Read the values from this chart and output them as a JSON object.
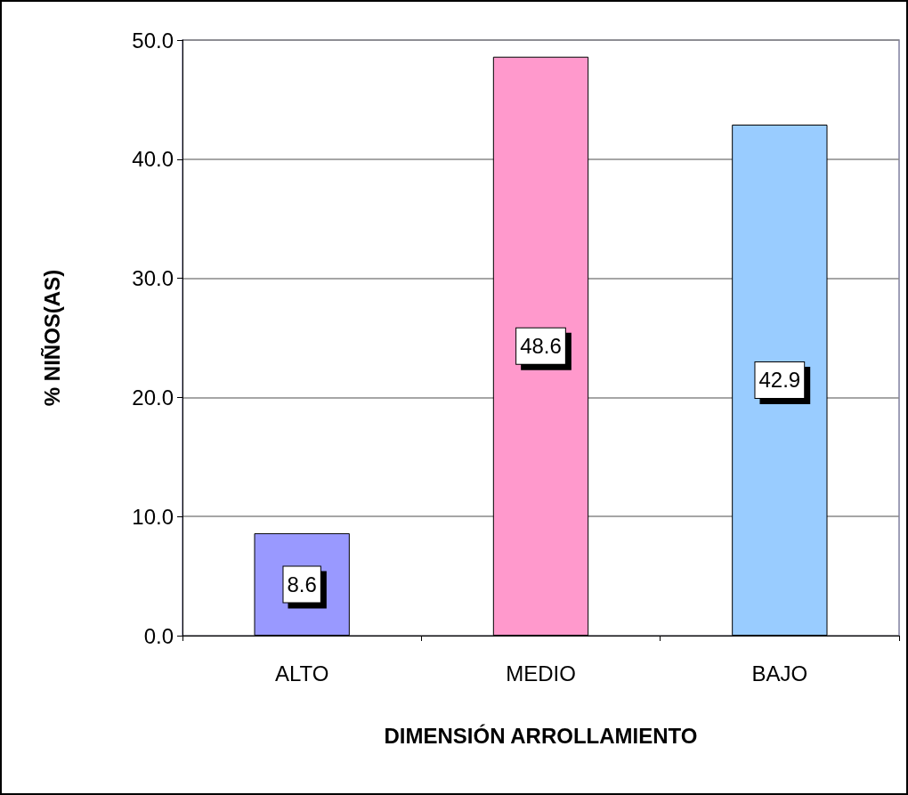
{
  "chart_data": {
    "type": "bar",
    "xlabel": "DIMENSIÓN ARROLLAMIENTO",
    "ylabel": "% NIÑOS(AS)",
    "categories": [
      "ALTO",
      "MEDIO",
      "BAJO"
    ],
    "values": [
      8.6,
      48.6,
      42.9
    ],
    "colors": [
      "#9999ff",
      "#ff99cc",
      "#99ccff"
    ],
    "ylim": [
      0,
      50
    ],
    "yticks": [
      {
        "value": 0,
        "label": "0.0"
      },
      {
        "value": 10,
        "label": "10.0"
      },
      {
        "value": 20,
        "label": "20.0"
      },
      {
        "value": 30,
        "label": "30.0"
      },
      {
        "value": 40,
        "label": "40.0"
      },
      {
        "value": 50,
        "label": "50.0"
      }
    ],
    "grid": "y",
    "data_labels": true
  }
}
